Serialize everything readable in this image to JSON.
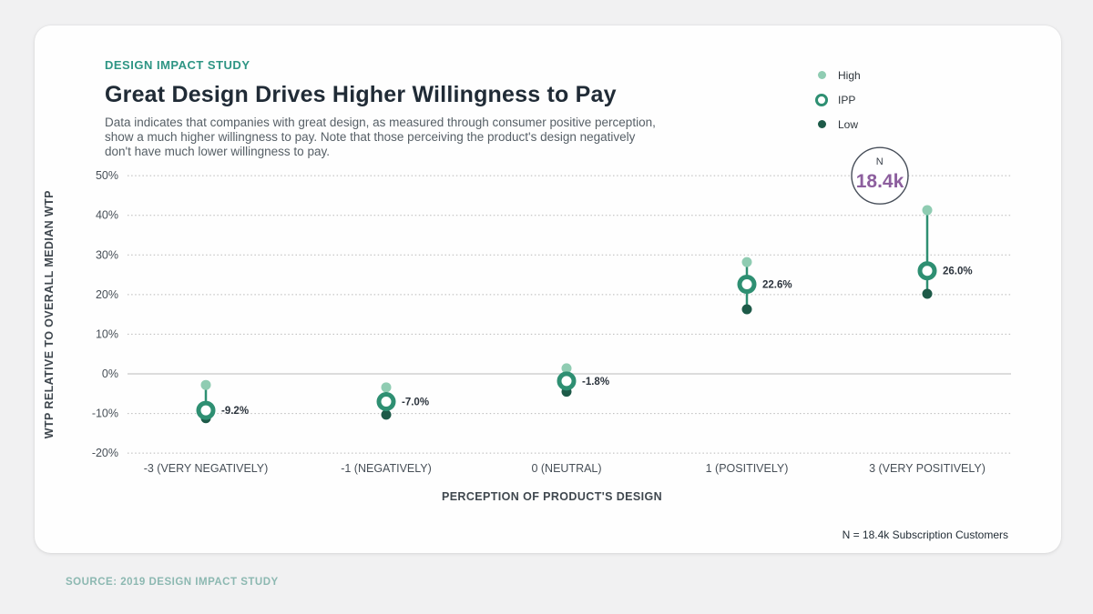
{
  "header": {
    "eyebrow": "DESIGN IMPACT STUDY",
    "title": "Great Design Drives Higher Willingness to Pay",
    "subtitle": "Data indicates that companies with great design, as measured through consumer positive perception, show a much higher willingness to pay. Note that those perceiving the product's design negatively don't have much lower willingness to pay."
  },
  "legend": {
    "position": "top-right",
    "items": [
      {
        "label": "High",
        "marker": "filled-dot",
        "color": "#8fccb2"
      },
      {
        "label": "IPP",
        "marker": "ring",
        "color": "#2e8f72"
      },
      {
        "label": "Low",
        "marker": "filled-dot",
        "color": "#1d5a48"
      }
    ]
  },
  "chart_data": {
    "type": "scatter",
    "subtype": "dumbbell-range-dot-plot",
    "title": "Great Design Drives Higher Willingness to Pay",
    "categories": [
      "-3 (VERY NEGATIVELY)",
      "-1 (NEGATIVELY)",
      "0 (NEUTRAL)",
      "1 (POSITIVELY)",
      "3 (VERY POSITIVELY)"
    ],
    "series": [
      {
        "name": "High",
        "values": [
          -2.8,
          -3.4,
          1.4,
          28.2,
          41.3
        ]
      },
      {
        "name": "IPP",
        "values": [
          -9.2,
          -7.0,
          -1.8,
          22.6,
          26.0
        ]
      },
      {
        "name": "Low",
        "values": [
          -11.2,
          -10.3,
          -4.5,
          16.3,
          20.2
        ]
      }
    ],
    "point_labels": [
      "-9.2%",
      "-7.0%",
      "-1.8%",
      "22.6%",
      "26.0%"
    ],
    "xlabel": "PERCEPTION OF PRODUCT'S DESIGN",
    "ylabel": "WTP RELATIVE TO OVERALL MEDIAN WTP",
    "ylim": [
      -20,
      50
    ],
    "yticks": [
      50,
      40,
      30,
      20,
      10,
      0,
      -10,
      -20
    ],
    "ytick_suffix": "%",
    "grid": "horizontal-dotted, solid line at 0%",
    "legend_position": "top-right",
    "annotation": {
      "label": "N",
      "value": "18.4k",
      "attached_tick": 50,
      "attached_category_index": 4
    }
  },
  "footer": {
    "note": "N = 18.4k Subscription Customers",
    "source": "SOURCE: 2019 DESIGN IMPACT STUDY"
  },
  "colors": {
    "page_background": "#f1f1f2",
    "card_background": "#fefefe",
    "accent_teal": "#2e9584",
    "series_high": "#8fccb2",
    "series_ipp": "#2e8f72",
    "series_low": "#1d5a48",
    "connector": "#2e8f72",
    "gridline": "#b9b9b9",
    "zero_line": "#dcdcdc",
    "annotation_value": "#8d5f9e",
    "annotation_ring": "#474e59",
    "source_text": "#8cb8b1"
  }
}
